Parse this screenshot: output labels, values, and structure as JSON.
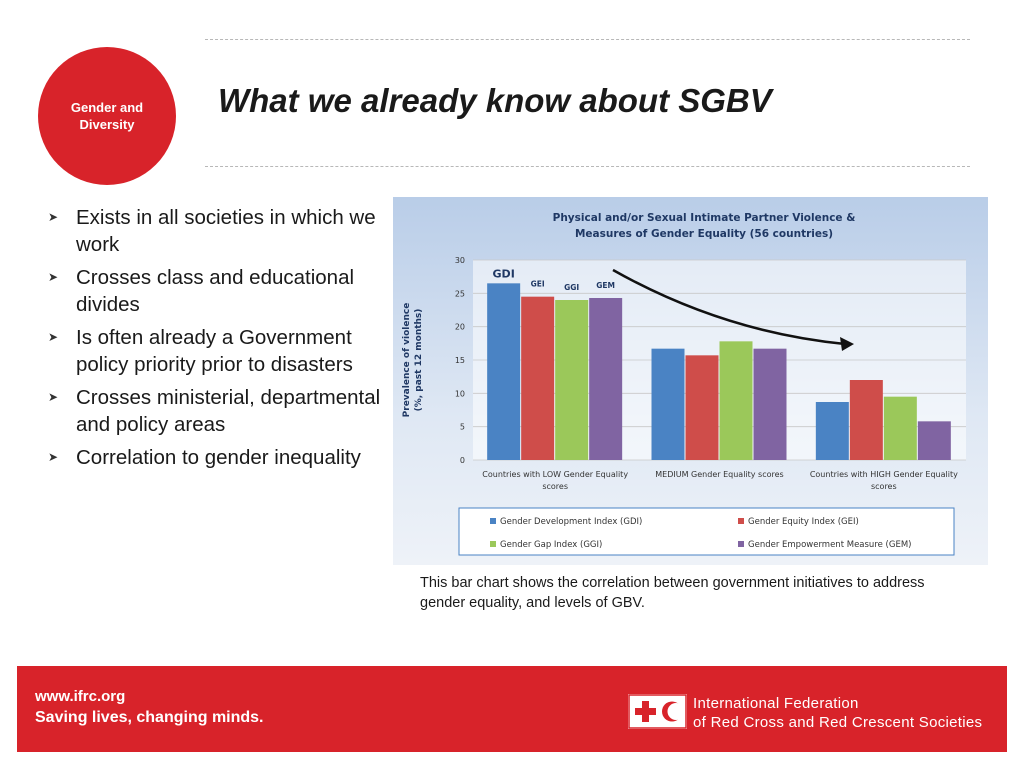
{
  "badge": {
    "text": "Gender and\nDiversity"
  },
  "title": "What we already know about SGBV",
  "bullets": [
    "Exists in all societies in which we work",
    "Crosses class and educational divides",
    "Is often  already a Government policy priority prior to disasters",
    "Crosses ministerial, departmental and policy areas",
    "Correlation to gender inequality"
  ],
  "caption": "This bar chart shows the correlation between government initiatives to address gender equality, and levels of GBV.",
  "footer": {
    "url": "www.ifrc.org",
    "slogan": "Saving lives, changing minds.",
    "org_line1": "International Federation",
    "org_line2": "of Red Cross and Red Crescent Societies"
  },
  "colors": {
    "brand_red": "#d8232a",
    "gdi": "#4a83c4",
    "gei": "#cf4d4a",
    "ggi": "#9bc85a",
    "gem": "#8064a2"
  },
  "chart_data": {
    "type": "bar",
    "title": "Physical and/or Sexual Intimate Partner Violence & Measures of Gender Equality (56 countries)",
    "title_lines": [
      "Physical and/or Sexual Intimate Partner Violence &",
      "Measures of Gender Equality (56 countries)"
    ],
    "ylabel": "Prevalence of violence (%, past 12 months)",
    "ylabel_lines": [
      "Prevalence of violence",
      "(%, past 12 months)"
    ],
    "ylim": [
      0,
      30
    ],
    "yticks": [
      0,
      5,
      10,
      15,
      20,
      25,
      30
    ],
    "grid": true,
    "categories": [
      "Countries with LOW Gender Equality scores",
      "MEDIUM Gender Equality scores",
      "Countries with HIGH Gender Equality scores"
    ],
    "category_lines": [
      [
        "Countries with LOW Gender Equality",
        "scores"
      ],
      [
        "MEDIUM Gender Equality scores"
      ],
      [
        "Countries with HIGH Gender Equality",
        "scores"
      ]
    ],
    "series": [
      {
        "name": "Gender Development Index (GDI)",
        "short": "GDI",
        "color": "#4a83c4",
        "values": [
          26.5,
          16.7,
          8.7
        ]
      },
      {
        "name": "Gender Equity Index (GEI)",
        "short": "GEI",
        "color": "#cf4d4a",
        "values": [
          24.5,
          15.7,
          12.0
        ]
      },
      {
        "name": "Gender Gap Index (GGI)",
        "short": "GGI",
        "color": "#9bc85a",
        "values": [
          24.0,
          17.8,
          9.5
        ]
      },
      {
        "name": "Gender Empowerment Measure (GEM)",
        "short": "GEM",
        "color": "#8064a2",
        "values": [
          24.3,
          16.7,
          5.8
        ]
      }
    ],
    "legend_position": "bottom"
  }
}
